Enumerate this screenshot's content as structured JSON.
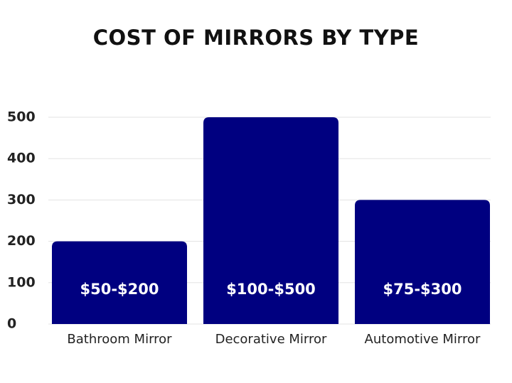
{
  "chart_data": {
    "type": "bar",
    "title": "COST OF MIRRORS BY TYPE",
    "categories": [
      "Bathroom Mirror",
      "Decorative Mirror",
      "Automotive Mirror"
    ],
    "values": [
      200,
      500,
      300
    ],
    "value_labels": [
      "$50-$200",
      "$100-$500",
      "$75-$300"
    ],
    "color": "#000080",
    "ylim": [
      0,
      500
    ],
    "yticks": [
      0,
      100,
      200,
      300,
      400,
      500
    ],
    "grid": true
  }
}
